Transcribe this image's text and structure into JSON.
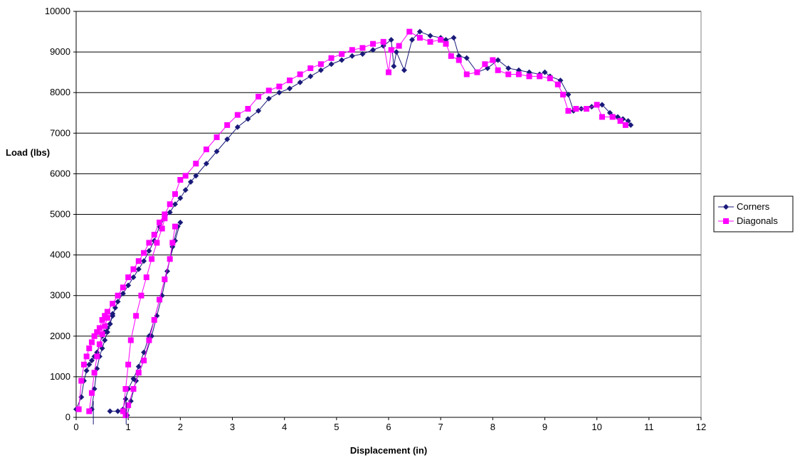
{
  "chart_data": {
    "type": "scatter",
    "xlabel": "Displacement (in)",
    "ylabel": "Load (lbs)",
    "xlim": [
      0,
      12
    ],
    "ylim": [
      0,
      10000
    ],
    "x_ticks": [
      0,
      1,
      2,
      3,
      4,
      5,
      6,
      7,
      8,
      9,
      10,
      11,
      12
    ],
    "y_ticks": [
      0,
      1000,
      2000,
      3000,
      4000,
      5000,
      6000,
      7000,
      8000,
      9000,
      10000
    ],
    "grid": "horizontal",
    "legend_position": "right",
    "series": [
      {
        "name": "Corners",
        "color": "#1a1a7a",
        "marker": "diamond",
        "points": [
          [
            0.0,
            200
          ],
          [
            0.1,
            500
          ],
          [
            0.15,
            900
          ],
          [
            0.2,
            1150
          ],
          [
            0.25,
            1300
          ],
          [
            0.3,
            1400
          ],
          [
            0.35,
            1500
          ],
          [
            0.4,
            1600
          ],
          [
            0.45,
            1800
          ],
          [
            0.5,
            2000
          ],
          [
            0.55,
            2100
          ],
          [
            0.6,
            2200
          ],
          [
            0.65,
            2300
          ],
          [
            0.7,
            2500
          ],
          [
            0.75,
            2700
          ],
          [
            0.8,
            2850
          ],
          [
            0.9,
            3050
          ],
          [
            1.0,
            3250
          ],
          [
            1.1,
            3450
          ],
          [
            1.2,
            3650
          ],
          [
            1.3,
            3850
          ],
          [
            1.4,
            4100
          ],
          [
            1.5,
            4350
          ],
          [
            1.6,
            4700
          ],
          [
            1.7,
            4900
          ],
          [
            1.8,
            5050
          ],
          [
            1.9,
            5250
          ],
          [
            2.0,
            5400
          ],
          [
            2.1,
            5600
          ],
          [
            2.2,
            5800
          ],
          [
            2.3,
            5950
          ],
          [
            2.5,
            6250
          ],
          [
            2.7,
            6550
          ],
          [
            2.9,
            6850
          ],
          [
            3.1,
            7150
          ],
          [
            3.3,
            7350
          ],
          [
            3.5,
            7550
          ],
          [
            3.7,
            7850
          ],
          [
            3.9,
            8000
          ],
          [
            4.1,
            8100
          ],
          [
            4.3,
            8250
          ],
          [
            4.5,
            8400
          ],
          [
            4.7,
            8550
          ],
          [
            4.9,
            8700
          ],
          [
            5.1,
            8800
          ],
          [
            5.3,
            8900
          ],
          [
            5.5,
            8950
          ],
          [
            5.7,
            9050
          ],
          [
            5.9,
            9150
          ],
          [
            6.05,
            9300
          ],
          [
            6.1,
            8650
          ],
          [
            6.15,
            9000
          ],
          [
            6.3,
            8550
          ],
          [
            6.45,
            9300
          ],
          [
            6.6,
            9500
          ],
          [
            6.8,
            9400
          ],
          [
            7.0,
            9350
          ],
          [
            7.1,
            9300
          ],
          [
            7.25,
            9350
          ],
          [
            7.35,
            8900
          ],
          [
            7.5,
            8850
          ],
          [
            7.7,
            8500
          ],
          [
            7.9,
            8600
          ],
          [
            8.1,
            8800
          ],
          [
            8.3,
            8600
          ],
          [
            8.5,
            8550
          ],
          [
            8.7,
            8500
          ],
          [
            8.9,
            8450
          ],
          [
            9.0,
            8500
          ],
          [
            9.1,
            8400
          ],
          [
            9.3,
            8300
          ],
          [
            9.45,
            7950
          ],
          [
            9.55,
            7550
          ],
          [
            9.7,
            7600
          ],
          [
            9.9,
            7650
          ],
          [
            10.1,
            7700
          ],
          [
            10.25,
            7500
          ],
          [
            10.4,
            7400
          ],
          [
            10.5,
            7350
          ],
          [
            10.6,
            7300
          ],
          [
            10.65,
            7200
          ]
        ],
        "unload_branches": [
          [
            [
              0.3,
              200
            ],
            [
              0.35,
              700
            ],
            [
              0.4,
              1200
            ],
            [
              0.45,
              1500
            ],
            [
              0.5,
              1700
            ],
            [
              0.55,
              1900
            ],
            [
              0.6,
              2100
            ],
            [
              0.65,
              2300
            ],
            [
              0.7,
              2550
            ]
          ],
          [
            [
              0.65,
              150
            ],
            [
              0.8,
              150
            ],
            [
              0.9,
              200
            ],
            [
              0.95,
              450
            ],
            [
              1.0,
              700
            ],
            [
              1.1,
              950
            ],
            [
              1.2,
              1250
            ],
            [
              1.3,
              1600
            ],
            [
              1.4,
              2000
            ],
            [
              1.5,
              2400
            ],
            [
              1.6,
              2900
            ],
            [
              1.7,
              3400
            ],
            [
              1.8,
              3900
            ],
            [
              1.9,
              4350
            ],
            [
              2.0,
              4800
            ]
          ],
          [
            [
              0.98,
              50
            ],
            [
              1.05,
              400
            ],
            [
              1.15,
              900
            ],
            [
              1.3,
              1400
            ],
            [
              1.45,
              2000
            ],
            [
              1.55,
              2500
            ],
            [
              1.65,
              3000
            ],
            [
              1.75,
              3600
            ],
            [
              1.85,
              4200
            ],
            [
              1.95,
              4700
            ]
          ]
        ]
      },
      {
        "name": "Diagonals",
        "color": "#ff00ff",
        "marker": "square",
        "points": [
          [
            0.05,
            200
          ],
          [
            0.1,
            900
          ],
          [
            0.15,
            1300
          ],
          [
            0.2,
            1500
          ],
          [
            0.25,
            1700
          ],
          [
            0.3,
            1850
          ],
          [
            0.35,
            2000
          ],
          [
            0.4,
            2100
          ],
          [
            0.45,
            2200
          ],
          [
            0.5,
            2400
          ],
          [
            0.55,
            2500
          ],
          [
            0.6,
            2600
          ],
          [
            0.7,
            2800
          ],
          [
            0.8,
            3000
          ],
          [
            0.9,
            3200
          ],
          [
            1.0,
            3450
          ],
          [
            1.1,
            3650
          ],
          [
            1.2,
            3850
          ],
          [
            1.3,
            4050
          ],
          [
            1.4,
            4300
          ],
          [
            1.5,
            4500
          ],
          [
            1.6,
            4800
          ],
          [
            1.7,
            5000
          ],
          [
            1.8,
            5250
          ],
          [
            1.9,
            5500
          ],
          [
            2.0,
            5850
          ],
          [
            2.1,
            5950
          ],
          [
            2.3,
            6250
          ],
          [
            2.5,
            6600
          ],
          [
            2.7,
            6900
          ],
          [
            2.9,
            7200
          ],
          [
            3.1,
            7450
          ],
          [
            3.3,
            7600
          ],
          [
            3.5,
            7900
          ],
          [
            3.7,
            8050
          ],
          [
            3.9,
            8150
          ],
          [
            4.1,
            8300
          ],
          [
            4.3,
            8450
          ],
          [
            4.5,
            8600
          ],
          [
            4.7,
            8700
          ],
          [
            4.9,
            8850
          ],
          [
            5.1,
            8950
          ],
          [
            5.3,
            9050
          ],
          [
            5.5,
            9100
          ],
          [
            5.7,
            9200
          ],
          [
            5.9,
            9250
          ],
          [
            6.0,
            8500
          ],
          [
            6.05,
            9050
          ],
          [
            6.2,
            9150
          ],
          [
            6.4,
            9500
          ],
          [
            6.6,
            9350
          ],
          [
            6.8,
            9250
          ],
          [
            7.0,
            9300
          ],
          [
            7.1,
            9200
          ],
          [
            7.2,
            8900
          ],
          [
            7.35,
            8800
          ],
          [
            7.5,
            8450
          ],
          [
            7.7,
            8500
          ],
          [
            7.85,
            8700
          ],
          [
            8.0,
            8800
          ],
          [
            8.1,
            8550
          ],
          [
            8.3,
            8450
          ],
          [
            8.5,
            8450
          ],
          [
            8.7,
            8400
          ],
          [
            8.9,
            8400
          ],
          [
            9.1,
            8350
          ],
          [
            9.25,
            8200
          ],
          [
            9.35,
            7950
          ],
          [
            9.45,
            7550
          ],
          [
            9.6,
            7600
          ],
          [
            9.8,
            7600
          ],
          [
            10.0,
            7700
          ],
          [
            10.1,
            7400
          ],
          [
            10.3,
            7400
          ],
          [
            10.45,
            7300
          ],
          [
            10.55,
            7200
          ]
        ],
        "unload_branches": [
          [
            [
              0.25,
              150
            ],
            [
              0.3,
              600
            ],
            [
              0.35,
              1100
            ],
            [
              0.4,
              1500
            ],
            [
              0.45,
              1800
            ],
            [
              0.5,
              2050
            ],
            [
              0.55,
              2250
            ],
            [
              0.6,
              2450
            ]
          ],
          [
            [
              0.9,
              150
            ],
            [
              0.95,
              700
            ],
            [
              1.0,
              1300
            ],
            [
              1.05,
              1900
            ],
            [
              1.15,
              2500
            ],
            [
              1.25,
              3000
            ],
            [
              1.35,
              3450
            ],
            [
              1.45,
              3900
            ],
            [
              1.55,
              4300
            ],
            [
              1.65,
              4650
            ],
            [
              1.7,
              4900
            ]
          ],
          [
            [
              0.95,
              50
            ],
            [
              1.0,
              300
            ],
            [
              1.1,
              700
            ],
            [
              1.2,
              1100
            ],
            [
              1.3,
              1400
            ],
            [
              1.4,
              1900
            ],
            [
              1.5,
              2400
            ],
            [
              1.6,
              2900
            ],
            [
              1.7,
              3400
            ],
            [
              1.8,
              3900
            ],
            [
              1.85,
              4300
            ],
            [
              1.9,
              4700
            ]
          ]
        ]
      }
    ]
  }
}
